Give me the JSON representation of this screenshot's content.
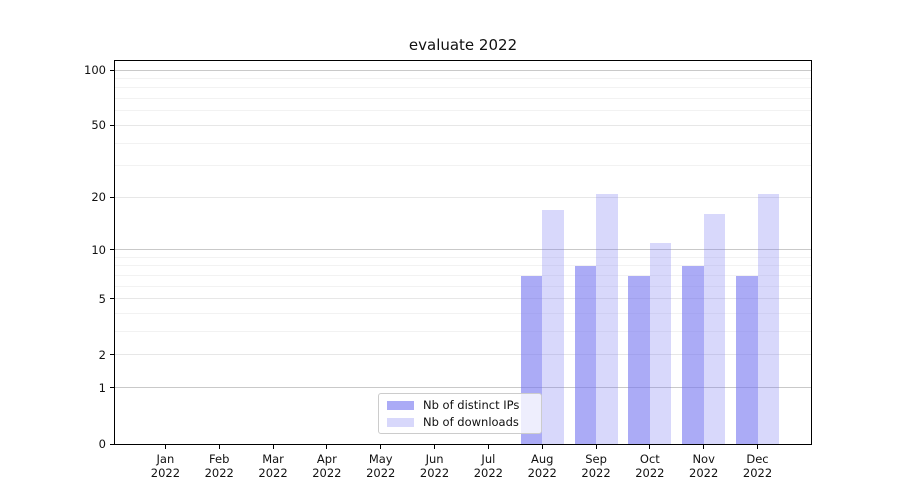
{
  "chart_data": {
    "type": "bar",
    "title": "evaluate 2022",
    "categories": [
      "Jan",
      "Feb",
      "Mar",
      "Apr",
      "May",
      "Jun",
      "Jul",
      "Aug",
      "Sep",
      "Oct",
      "Nov",
      "Dec"
    ],
    "year_label": "2022",
    "series": [
      {
        "name": "Nb of distinct IPs",
        "color": "rgba(120,120,240,0.62)",
        "values": [
          0,
          0,
          0,
          0,
          0,
          0,
          0,
          7,
          8,
          7,
          8,
          7
        ]
      },
      {
        "name": "Nb of downloads",
        "color": "rgba(120,120,240,0.29)",
        "values": [
          0,
          0,
          0,
          0,
          0,
          0,
          0,
          17,
          21,
          11,
          16,
          21
        ]
      }
    ],
    "y_axis": {
      "scale": "log1p",
      "tick_labels": [
        "0",
        "1",
        "2",
        "5",
        "10",
        "20",
        "50",
        "100"
      ],
      "tick_values": [
        0,
        1,
        2,
        5,
        10,
        20,
        50,
        100
      ],
      "major_gridlines": [
        1,
        10,
        100
      ],
      "mid_gridlines": [
        2,
        5,
        20,
        50
      ],
      "minor_gridlines": [
        3,
        4,
        6,
        7,
        8,
        9,
        30,
        40,
        60,
        70,
        80,
        90
      ],
      "ylim": [
        0,
        114
      ]
    },
    "xlabel": "",
    "ylabel": "",
    "grid": true,
    "legend_position": "lower-center"
  },
  "colors": {
    "accent_dark_bar": "#a7a7f7",
    "accent_light_bar": "#d8d8f9",
    "grid_major": "#c9c9c9",
    "grid_minor": "#f2f2f2",
    "legend_border": "#cccccc",
    "spine": "#000000",
    "background": "#ffffff"
  }
}
